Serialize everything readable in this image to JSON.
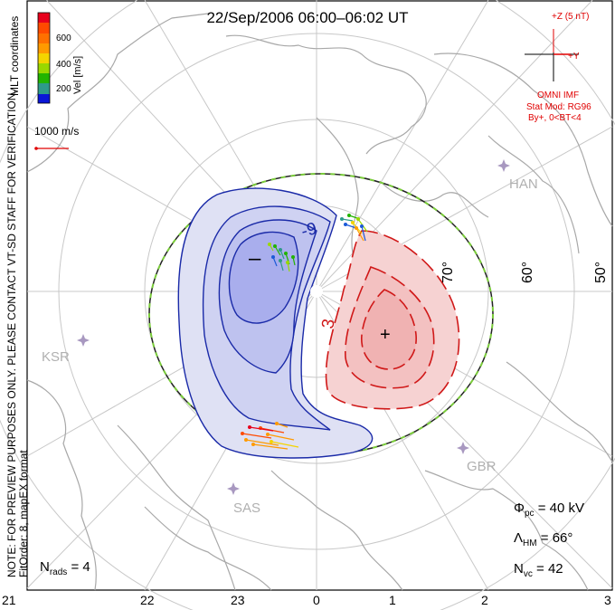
{
  "title": "22/Sep/2006 06:00–06:02 UT",
  "colorbar": {
    "ticks": [
      "600",
      "400",
      "200"
    ],
    "label": "Vel [m/s]",
    "colors": [
      "#e8001c",
      "#ff4a00",
      "#ff9a00",
      "#f4d400",
      "#9ad800",
      "#22b400",
      "#2e9a8a",
      "#1c5ad8",
      "#0a16d8"
    ]
  },
  "coordinates_label": "MLT coordinates",
  "scale_vector_label": "1000 m/s",
  "verification_note": "NOTE: FOR PREVIEW PURPOSES ONLY. PLEASE CONTACT VT-SD STAFF FOR VERIFICATION.",
  "fit_info": "FitOrder: 8, mapEX format",
  "imf": {
    "z_label": "+Z (5 nT)",
    "y_label": "+Y",
    "source": "OMNI IMF",
    "stat_mod": "Stat Mod: RG96",
    "condition": "By+, 0<BT<4"
  },
  "latitude_labels": [
    "70°",
    "60°",
    "50°"
  ],
  "stations": [
    "HAN",
    "KSR",
    "SAS",
    "GBR"
  ],
  "contour_labels": [
    "-9",
    "3"
  ],
  "symbols": {
    "min": "–",
    "max": "+"
  },
  "stats": {
    "phi_pc_label": "Φ",
    "phi_pc_sub": "pc",
    "phi_pc_value": " = 40 kV",
    "lambda_hm_label": "Λ",
    "lambda_hm_sub": "HM",
    "lambda_hm_value": " = 66°",
    "n_vc_label": "N",
    "n_vc_sub": "vc",
    "n_vc_value": " = 42",
    "n_rads_label": "N",
    "n_rads_sub": "rads",
    "n_rads_value": " = 4"
  },
  "mlt_hours": [
    "21",
    "22",
    "23",
    "0",
    "1",
    "2",
    "3"
  ],
  "colors": {
    "negative_fill": "#b8bdf0",
    "negative_line": "#1a2aa8",
    "positive_fill": "#f5c2c2",
    "positive_line": "#d01818",
    "boundary_green": "#7acc3a",
    "grid": "#c8c8c8",
    "coast": "#a8a8a8",
    "station": "#a898c0"
  }
}
